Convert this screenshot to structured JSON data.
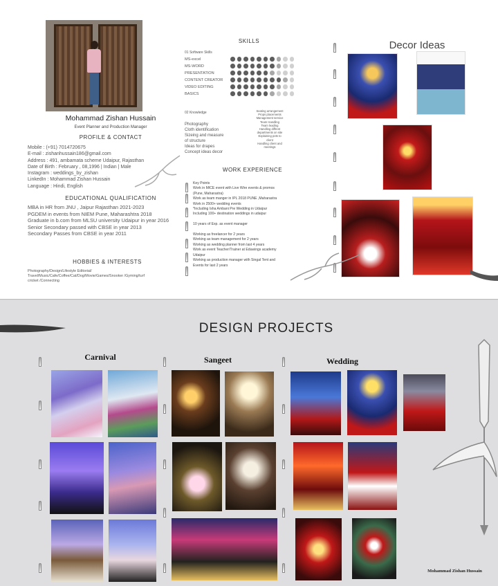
{
  "resume": {
    "name": "Mohammad Zishan Hussain",
    "role": "Event Planner and Production Manager",
    "profile_heading": "PROFILE & CONTACT",
    "contact": [
      "Mobile : (+91) 7014720675",
      "E-mail : zishanhussain186@gmail.com",
      "Address : 491,  ambamata scheme Udaipur, Rajasthan",
      "Date of Birth : February , 08,1996 | Indian | Male",
      "Instagram : weddings_by_zishan",
      "LinkedIn : Mohammad Zishan Hussain",
      "Language : Hindi, English"
    ],
    "education_heading": "EDUCATIONAL QUALIFICATION",
    "education": [
      "MBA in HR from JNU , Jaipur Rajasthan 2021-2023",
      "PGDEM in events from NIEM Pune, Maharashtra 2018",
      "Graduate in b.com from MLSU university Udaipur in year 2016",
      "Senior Secondary passed with CBSE in year 2013",
      "Secondary Passes from CBSE in year 2011"
    ],
    "hobbies_heading": "HOBBIES & INTERESTS",
    "hobbies": "Photography/Design/Lifestyle Editorial/ Travel/Music/Cafe/Coffee/Cat/Dog/Movie/Games/Snooker /Gyming/turf cricket /Connecting",
    "skills_heading": "SKILLS",
    "software_skills_title": "01 Software Skills",
    "software_skills": [
      {
        "name": "MS-excel",
        "level": 7
      },
      {
        "name": "MS-WORD",
        "level": 7
      },
      {
        "name": "PRESENTATION",
        "level": 6
      },
      {
        "name": "CONTENT CREATOR",
        "level": 8
      },
      {
        "name": "VIDEO  EDITING",
        "level": 7
      },
      {
        "name": "BASICS",
        "level": 6
      }
    ],
    "skill_scale_max": 10,
    "knowledge_title": "02 Knowledge",
    "knowledge": [
      "Photography",
      "Cloth identification",
      "Sizeing  and measure",
      "of structure",
      "Ideas for drapes",
      "Concept ideas decor"
    ],
    "knowledge_extra": [
      "Seating arrangement",
      "Props placements",
      "Management service",
      "Team Handling",
      "Team leading",
      "Handling diffrent",
      "departments on site",
      "Explaining pots to",
      "client",
      "Handling client and",
      "meetings"
    ],
    "work_heading": "WORK EXPERIENCE",
    "work": [
      "Key Points",
      "Work in MICE event with Live Wire events & promos",
      "(Pune, Maharastra)",
      "Work as team manger in IPL 2018 PUNE ,Maharastra",
      "Work in 2500+ wedding events",
      "*Including Isha Ambani Pre Wedding in Udaipur",
      "Including 100+ destination weddings in udaipur",
      "",
      "10 years of Exp. as event manager",
      "",
      "Working as freelancer for 2 years",
      "Working as team management for 2 years",
      "Working as wedding planner from last 4 years",
      "Work as event Teacher/Trainer at Eduwings academy",
      "Udaipur",
      "Working as production manager with Singal Tent and",
      "Events for last 2 years"
    ],
    "decor_heading": "Decor Ideas"
  },
  "projects": {
    "heading": "DESIGN PROJECTS",
    "categories": [
      "Carnival",
      "Sangeet",
      "Wedding"
    ],
    "signature": "Mohammad Zishan Hussain"
  },
  "colors": {
    "page_bg": "#ffffff",
    "projects_bg": "#dedee0",
    "dot_filled": "#5d5d5d",
    "dot_empty": "#d0d0d0",
    "accent_red": "#c01818"
  }
}
